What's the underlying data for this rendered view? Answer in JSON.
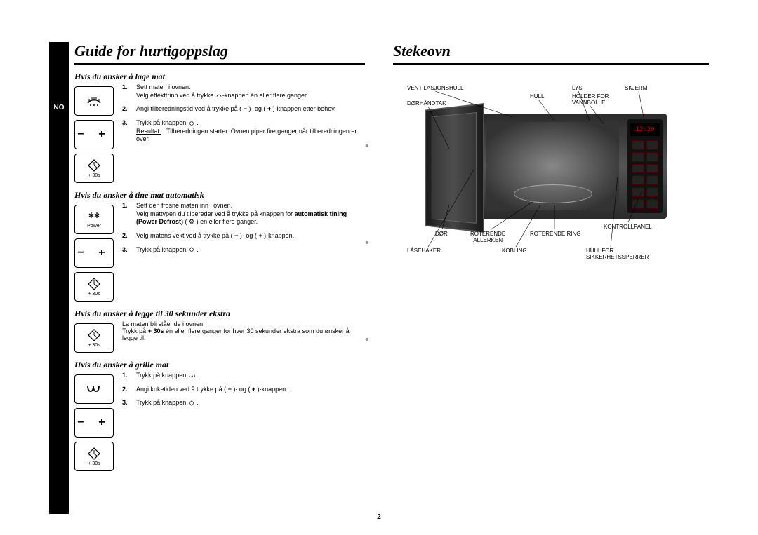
{
  "page_number": "2",
  "lang_tab": "NO",
  "left": {
    "title": "Guide for hurtigoppslag",
    "sec1": {
      "heading": "Hvis du ønsker å lage mat",
      "icons": [
        {
          "glyph": "power",
          "sub": ""
        },
        {
          "glyph": "pm",
          "sub": ""
        },
        {
          "glyph": "start",
          "sub": "+ 30s"
        }
      ],
      "steps": [
        {
          "n": "1.",
          "t": "Sett maten i ovnen.\nVelg effekttrinn ved å trykke ⚙-knappen én eller flere ganger."
        },
        {
          "n": "2.",
          "t": "Angi tilberedningstid ved å trykke på ( − )- og ( + )-knappen etter behov."
        },
        {
          "n": "3.",
          "t": "Trykk på knappen ◇ .",
          "result": "Resultat:",
          "result_t": "Tilberedningen starter. Ovnen piper fire ganger når tilberedningen er over."
        }
      ]
    },
    "sec2": {
      "heading": "Hvis du ønsker å tine mat automatisk",
      "icons": [
        {
          "glyph": "defrost",
          "sub": "Power"
        },
        {
          "glyph": "pm",
          "sub": ""
        },
        {
          "glyph": "start",
          "sub": "+ 30s"
        }
      ],
      "steps": [
        {
          "n": "1.",
          "t1": "Sett den frosne maten inn i ovnen.\nVelg mattypen du tilbereder ved å trykke på knappen for ",
          "bold": "automatisk tining (Power Defrost)",
          "t2": " ( ⚙ ) en eller flere ganger."
        },
        {
          "n": "2.",
          "t": "Velg matens vekt ved å trykke på ( − )- og ( + )-knappen."
        },
        {
          "n": "3.",
          "t": "Trykk på knappen ◇ ."
        }
      ]
    },
    "sec3": {
      "heading": "Hvis du ønsker å legge til 30 sekunder ekstra",
      "icons": [
        {
          "glyph": "start",
          "sub": "+ 30s"
        }
      ],
      "text1": "La maten bli stående i ovnen.",
      "text2": "Trykk på ",
      "text2_bold": "+ 30s",
      "text2_after": "  én eller flere ganger for hver 30 sekunder ekstra som du ønsker å legge til."
    },
    "sec4": {
      "heading": "Hvis du ønsker å grille mat",
      "icons": [
        {
          "glyph": "grill",
          "sub": ""
        },
        {
          "glyph": "pm",
          "sub": ""
        },
        {
          "glyph": "start",
          "sub": "+ 30s"
        }
      ],
      "steps": [
        {
          "n": "1.",
          "t": "Trykk på knappen ⏜ ."
        },
        {
          "n": "2.",
          "t": "Angi koketiden ved å trykke på ( − )- og ( + )-knappen."
        },
        {
          "n": "3.",
          "t": "Trykk på knappen ◇ ."
        }
      ]
    }
  },
  "right": {
    "title": "Stekeovn",
    "display_text": "12:30",
    "labels": {
      "ventilasjonshull": "VENTILASJONSHULL",
      "lys": "LYS",
      "skjerm": "SKJERM",
      "dorhandtak": "DØRHÅNDTAK",
      "hull": "HULL",
      "holder": "HOLDER FOR VANNBOLLE",
      "dor": "DØR",
      "roterende_tallerken": "ROTERENDE TALLERKEN",
      "roterende_ring": "ROTERENDE RING",
      "kontrollpanel": "KONTROLLPANEL",
      "lasehaker": "LÅSEHAKER",
      "kobling": "KOBLING",
      "hull_sikkerhet": "HULL FOR SIKKERHETSSPERRER"
    }
  },
  "style": {
    "page_bg": "#ffffff",
    "title_font": "Georgia serif italic bold 22pt",
    "body_font": "Arial 9px",
    "rule_color": "#000000",
    "oven_body_color": "#3a3a3a",
    "display_color": "#cc0000",
    "panel_color": "#111111"
  }
}
